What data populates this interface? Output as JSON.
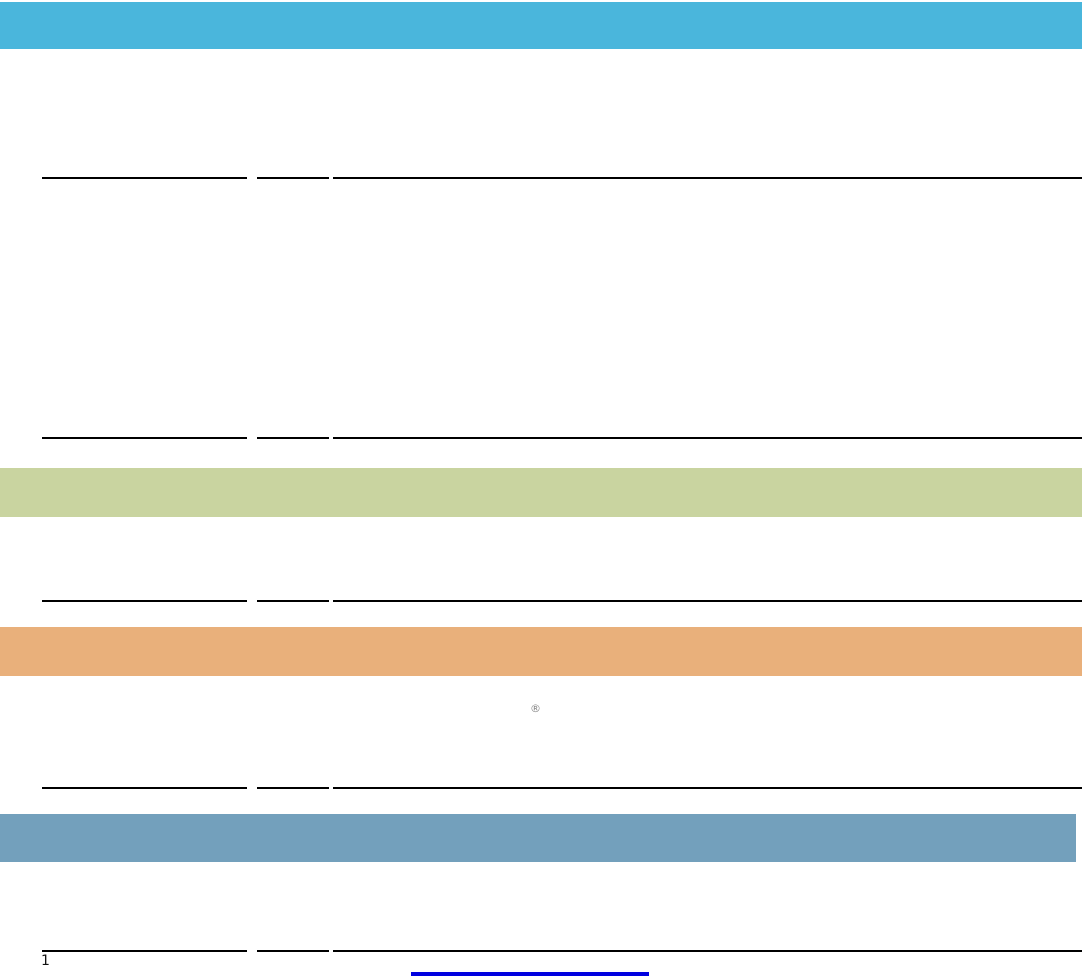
{
  "title_banner": {
    "color": "#4AB6DC"
  },
  "tables": {
    "rule_color": "#000000"
  },
  "sections": [
    {
      "id": "section-green",
      "color": "#C9D4A0"
    },
    {
      "id": "section-orange",
      "color": "#E9B07B",
      "symbol": "®",
      "symbol_color": "#858585"
    },
    {
      "id": "section-steel",
      "color": "#73A0BC"
    }
  ],
  "footer": {
    "footnote_marker": "1",
    "link_color": "#0000E0"
  }
}
